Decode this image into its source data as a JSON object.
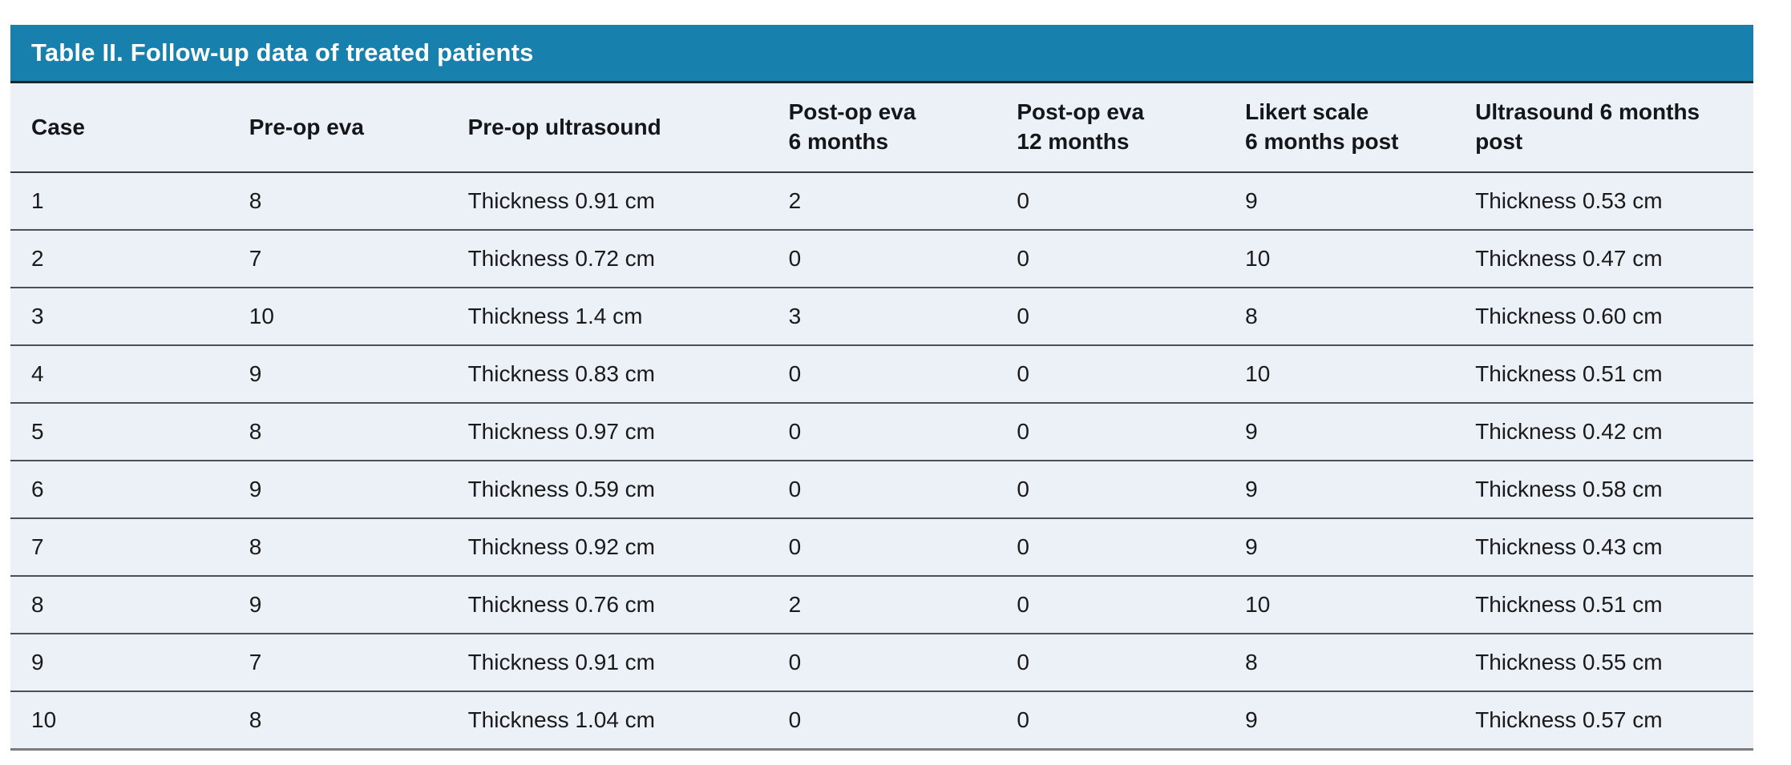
{
  "table": {
    "title": "Table II. Follow-up data of treated patients",
    "columns": [
      {
        "key": "case",
        "label": "Case"
      },
      {
        "key": "preop-eva",
        "label": "Pre-op eva"
      },
      {
        "key": "preop-ultrasound",
        "label": "Pre-op ultrasound"
      },
      {
        "key": "postop-eva-6-months",
        "label": "Post-op eva\n6 months"
      },
      {
        "key": "postop-eva-12-months",
        "label": "Post-op eva\n12 months"
      },
      {
        "key": "likert-scale-6-months-post",
        "label": "Likert scale\n6 months post"
      },
      {
        "key": "ultrasound-6-months-post",
        "label": "Ultrasound 6 months\npost"
      }
    ],
    "rows": [
      [
        "1",
        "8",
        "Thickness 0.91 cm",
        "2",
        "0",
        "9",
        "Thickness 0.53 cm"
      ],
      [
        "2",
        "7",
        "Thickness 0.72 cm",
        "0",
        "0",
        "10",
        "Thickness 0.47 cm"
      ],
      [
        "3",
        "10",
        "Thickness 1.4 cm",
        "3",
        "0",
        "8",
        "Thickness 0.60 cm"
      ],
      [
        "4",
        "9",
        "Thickness 0.83 cm",
        "0",
        "0",
        "10",
        "Thickness 0.51 cm"
      ],
      [
        "5",
        "8",
        "Thickness 0.97 cm",
        "0",
        "0",
        "9",
        "Thickness 0.42 cm"
      ],
      [
        "6",
        "9",
        "Thickness 0.59 cm",
        "0",
        "0",
        "9",
        "Thickness 0.58 cm"
      ],
      [
        "7",
        "8",
        "Thickness 0.92 cm",
        "0",
        "0",
        "9",
        "Thickness 0.43 cm"
      ],
      [
        "8",
        "9",
        "Thickness 0.76 cm",
        "2",
        "0",
        "10",
        "Thickness 0.51 cm"
      ],
      [
        "9",
        "7",
        "Thickness 0.91 cm",
        "0",
        "0",
        "8",
        "Thickness 0.55 cm"
      ],
      [
        "10",
        "8",
        "Thickness 1.04 cm",
        "0",
        "0",
        "9",
        "Thickness 0.57 cm"
      ]
    ],
    "colors": {
      "title_bar_bg": "#1780AD",
      "title_text": "#FFFFFF",
      "row_bg": "#ECF0F7",
      "body_text": "#1A1A1A",
      "row_separator": "#4A5058",
      "header_underline": "#383D44",
      "title_underline": "#1F2326",
      "bottom_border": "#7C7C7C"
    }
  }
}
